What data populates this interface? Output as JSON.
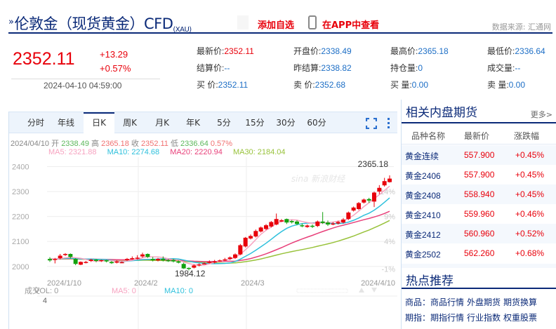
{
  "header": {
    "title_mark": "»",
    "title": "伦敦金（现货黄金）CFD",
    "title_sub": "(XAU)",
    "add_watch": "添加自选",
    "view_in_app": "在APP中查看",
    "data_source": "数据来源: 汇通网",
    "icons": {
      "phone": "phone-icon"
    }
  },
  "quote": {
    "price": "2352.11",
    "change": "+13.29",
    "change_pct": "+0.57%",
    "timestamp": "2024-04-10 04:59:00",
    "direction": "up",
    "color_up": "#e8000b",
    "arrow_color": "#a0000a"
  },
  "stats": [
    {
      "label": "最新价:",
      "value": "2352.11",
      "red": true
    },
    {
      "label": "开盘价:",
      "value": "2338.49"
    },
    {
      "label": "最高价:",
      "value": "2365.18"
    },
    {
      "label": "最低价:",
      "value": "2336.64"
    },
    {
      "label": "结算价:",
      "value": "--"
    },
    {
      "label": "昨结算:",
      "value": "2338.82"
    },
    {
      "label": "持仓量:",
      "value": "0"
    },
    {
      "label": "成交量:",
      "value": "--"
    },
    {
      "label": "买  价:",
      "value": "2352.11"
    },
    {
      "label": "卖  价:",
      "value": "2352.68"
    },
    {
      "label": "买  量:",
      "value": "0.00"
    },
    {
      "label": "卖  量:",
      "value": "0.00"
    }
  ],
  "chart": {
    "tabs": [
      "分时",
      "年线",
      "日K",
      "周K",
      "月K",
      "年K",
      "5分",
      "15分",
      "30分",
      "60分"
    ],
    "active_tab": "日K",
    "toolbar_icons": [
      "fullscreen-icon",
      "more-vertical-icon"
    ],
    "info": {
      "date": "2024/04/10",
      "open_label": "开",
      "open": "2338.49",
      "high_label": "高",
      "high": "2365.18",
      "close_label": "收",
      "close": "2352.11",
      "low_label": "低",
      "low": "2336.64",
      "pct": "0.57%"
    },
    "ma": {
      "ma5": "MA5: 2321.88",
      "ma10": "MA10: 2274.68",
      "ma20": "MA20: 2220.94",
      "ma30": "MA30: 2184.04"
    },
    "ma_colors": {
      "ma5": "#f7a3c0",
      "ma10": "#2ec0dc",
      "ma20": "#e8407a",
      "ma30": "#98c23a"
    },
    "y_labels": [
      "2400",
      "2300",
      "2200",
      "2100",
      "2000"
    ],
    "pct_labels": [
      "14%",
      "9%",
      "4%",
      "-1%"
    ],
    "x_labels": [
      "2024/1/10",
      "2024/2",
      "2024/3",
      "2024/4/10"
    ],
    "max_label": "2365.18",
    "min_label": "1984.12",
    "watermark": "sina 新浪财经",
    "volume": {
      "title": "成交",
      "vol": "VOL: 0",
      "ma5": "MA5: 0",
      "ma10": "MA10: 0",
      "axis_top": "4"
    }
  },
  "chart_data": {
    "type": "candlestick",
    "title": "伦敦金 日K",
    "x_labels": [
      "2024/1/10",
      "2024/2",
      "2024/3",
      "2024/4/10"
    ],
    "ylim": [
      1960,
      2410
    ],
    "y_ticks": [
      2000,
      2100,
      2200,
      2300,
      2400
    ],
    "candles": [
      [
        2030,
        2024,
        2037,
        2018
      ],
      [
        2026,
        2030,
        2034,
        2012
      ],
      [
        2033,
        2043,
        2050,
        2028
      ],
      [
        2047,
        2050,
        2053,
        2042
      ],
      [
        2050,
        2038,
        2052,
        2032
      ],
      [
        2030,
        2010,
        2033,
        2005
      ],
      [
        2007,
        2018,
        2020,
        2005
      ],
      [
        2015,
        2018,
        2022,
        2012
      ],
      [
        2022,
        2027,
        2030,
        2018
      ],
      [
        2027,
        2022,
        2030,
        2017
      ],
      [
        2022,
        2025,
        2027,
        2018
      ],
      [
        2025,
        2020,
        2026,
        2016
      ],
      [
        2018,
        2013,
        2022,
        2010
      ],
      [
        2015,
        2020,
        2024,
        2012
      ],
      [
        2015,
        2017,
        2020,
        2013
      ],
      [
        2025,
        2030,
        2034,
        2022
      ],
      [
        2030,
        2033,
        2040,
        2027
      ],
      [
        2032,
        2035,
        2045,
        2028
      ],
      [
        2040,
        2048,
        2055,
        2035
      ],
      [
        2050,
        2038,
        2052,
        2034
      ],
      [
        2030,
        2025,
        2038,
        2020
      ],
      [
        2024,
        2030,
        2034,
        2020
      ],
      [
        2030,
        2024,
        2040,
        2020
      ],
      [
        2025,
        2022,
        2030,
        2018
      ],
      [
        2026,
        2020,
        2030,
        2016
      ],
      [
        2020,
        2015,
        2024,
        2012
      ],
      [
        2010,
        1992,
        2015,
        1990
      ],
      [
        1994,
        1990,
        1996,
        1984
      ],
      [
        1995,
        2004,
        2008,
        1992
      ],
      [
        2004,
        2008,
        2012,
        2000
      ],
      [
        2010,
        2012,
        2016,
        2008
      ],
      [
        2014,
        2018,
        2024,
        2012
      ],
      [
        2016,
        2020,
        2026,
        2012
      ],
      [
        2022,
        2024,
        2028,
        2018
      ],
      [
        2026,
        2028,
        2034,
        2022
      ],
      [
        2030,
        2036,
        2040,
        2026
      ],
      [
        2034,
        2048,
        2052,
        2030
      ],
      [
        2048,
        2085,
        2090,
        2045
      ],
      [
        2080,
        2115,
        2118,
        2076
      ],
      [
        2112,
        2122,
        2128,
        2108
      ],
      [
        2120,
        2142,
        2148,
        2116
      ],
      [
        2140,
        2156,
        2160,
        2136
      ],
      [
        2150,
        2165,
        2170,
        2146
      ],
      [
        2160,
        2178,
        2182,
        2156
      ],
      [
        2168,
        2190,
        2212,
        2165
      ],
      [
        2180,
        2185,
        2190,
        2178
      ],
      [
        2190,
        2176,
        2192,
        2170
      ],
      [
        2182,
        2177,
        2186,
        2172
      ],
      [
        2180,
        2170,
        2185,
        2165
      ],
      [
        2165,
        2162,
        2172,
        2157
      ],
      [
        2158,
        2164,
        2168,
        2155
      ],
      [
        2163,
        2160,
        2168,
        2154
      ],
      [
        2162,
        2180,
        2184,
        2158
      ],
      [
        2180,
        2174,
        2218,
        2170
      ],
      [
        2176,
        2168,
        2184,
        2162
      ],
      [
        2170,
        2172,
        2178,
        2165
      ],
      [
        2172,
        2178,
        2183,
        2168
      ],
      [
        2176,
        2188,
        2194,
        2172
      ],
      [
        2190,
        2216,
        2220,
        2186
      ],
      [
        2224,
        2236,
        2240,
        2220
      ],
      [
        2230,
        2254,
        2258,
        2226
      ],
      [
        2256,
        2268,
        2272,
        2252
      ],
      [
        2270,
        2264,
        2275,
        2255
      ],
      [
        2260,
        2296,
        2300,
        2238
      ],
      [
        2300,
        2315,
        2326,
        2290
      ],
      [
        2325,
        2342,
        2355,
        2320
      ],
      [
        2338,
        2352,
        2365,
        2336
      ]
    ]
  },
  "sidebar": {
    "related_title": "相关内盘期货",
    "more": "更多>",
    "columns": [
      "品种名称",
      "最新价",
      "涨跌幅"
    ],
    "rows": [
      {
        "name": "黄金连续",
        "price": "557.900",
        "change": "+0.45%"
      },
      {
        "name": "黄金2406",
        "price": "557.900",
        "change": "+0.45%"
      },
      {
        "name": "黄金2408",
        "price": "558.940",
        "change": "+0.45%"
      },
      {
        "name": "黄金2410",
        "price": "559.960",
        "change": "+0.46%"
      },
      {
        "name": "黄金2412",
        "price": "560.960",
        "change": "+0.52%"
      },
      {
        "name": "黄金2502",
        "price": "562.260",
        "change": "+0.68%"
      }
    ],
    "hot_title": "热点推荐",
    "hot_lines": [
      {
        "label": "商品：",
        "links": [
          "商品行情",
          "外盘期货",
          "期货换算"
        ]
      },
      {
        "label": "期指：",
        "links": [
          "期指行情",
          "行业指数",
          "权重股票"
        ]
      }
    ]
  }
}
